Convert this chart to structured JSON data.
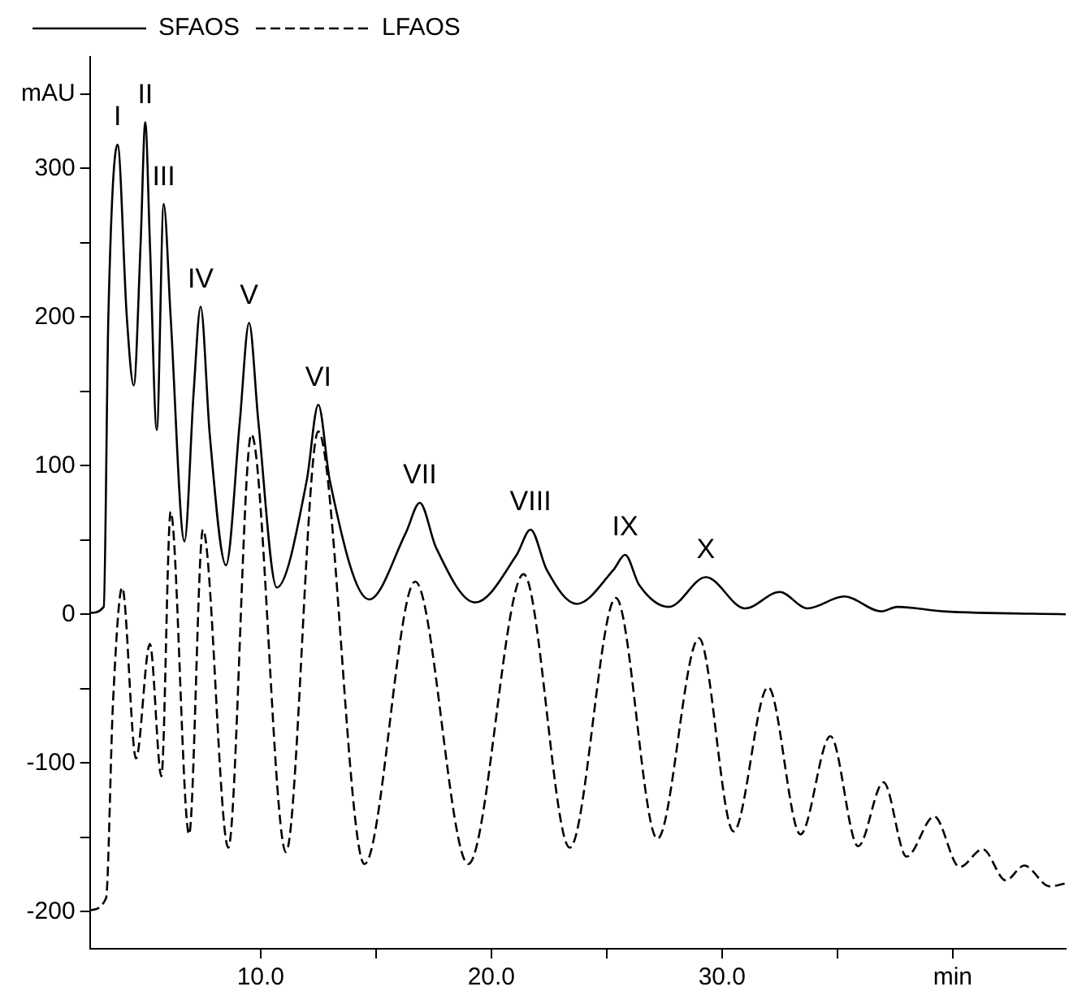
{
  "chart_data": {
    "type": "line",
    "xlim": [
      2.6,
      44.9
    ],
    "ylim": [
      -225,
      375
    ],
    "xticks": [
      {
        "value": 10,
        "label": "10.0"
      },
      {
        "value": 15,
        "label": null
      },
      {
        "value": 20,
        "label": "20.0"
      },
      {
        "value": 25,
        "label": null
      },
      {
        "value": 30,
        "label": "30.0"
      },
      {
        "value": 35,
        "label": null
      },
      {
        "value": 40,
        "label": "min"
      }
    ],
    "yticks": [
      -200,
      {
        "value": -150,
        "label": null
      },
      -100,
      {
        "value": -50,
        "label": null
      },
      0,
      {
        "value": 50,
        "label": null
      },
      100,
      {
        "value": 150,
        "label": null
      },
      200,
      {
        "value": 250,
        "label": null
      },
      300,
      {
        "value": 350,
        "label": "mAU"
      }
    ],
    "grid": false,
    "legend": "top left",
    "marker": "none",
    "series": [
      {
        "name": "SFAOS",
        "color": "#000000",
        "line_style": "solid",
        "x": [
          2.6,
          3.2,
          3.4,
          3.8,
          4.2,
          4.5,
          4.8,
          5.0,
          5.2,
          5.5,
          5.8,
          6.1,
          6.7,
          7.1,
          7.4,
          7.8,
          8.5,
          9.1,
          9.5,
          9.9,
          10.7,
          12.0,
          12.5,
          13.0,
          14.7,
          16.3,
          16.9,
          17.6,
          19.3,
          21.1,
          21.7,
          22.4,
          23.7,
          25.3,
          25.8,
          26.4,
          27.7,
          29.3,
          31.0,
          32.5,
          33.7,
          35.3,
          36.9,
          37.6,
          39.6,
          44.9
        ],
        "values": [
          1,
          5,
          200,
          316,
          200,
          154,
          250,
          331,
          250,
          124,
          276,
          200,
          49,
          150,
          207,
          120,
          33,
          130,
          196,
          130,
          18,
          90,
          141,
          90,
          10,
          55,
          75,
          45,
          8,
          40,
          57,
          30,
          7,
          30,
          40,
          20,
          5,
          25,
          4,
          15,
          4,
          12,
          2,
          5,
          2,
          0
        ]
      },
      {
        "name": "LFAOS",
        "color": "#000000",
        "line_style": "dashed",
        "x": [
          2.6,
          3.3,
          3.6,
          4.0,
          4.6,
          5.2,
          5.7,
          6.1,
          6.9,
          7.5,
          8.6,
          9.6,
          11.1,
          12.5,
          14.5,
          16.7,
          19.0,
          21.4,
          23.4,
          25.4,
          27.2,
          29.0,
          30.5,
          32.0,
          33.4,
          34.7,
          35.9,
          37.0,
          38.0,
          39.2,
          40.3,
          41.3,
          42.3,
          43.1,
          44.2,
          44.9
        ],
        "values": [
          -199,
          -191,
          -60,
          18,
          -97,
          -20,
          -109,
          69,
          -148,
          57,
          -157,
          121,
          -160,
          123,
          -168,
          22,
          -168,
          27,
          -157,
          11,
          -151,
          -16,
          -146,
          -49,
          -148,
          -82,
          -156,
          -113,
          -163,
          -136,
          -170,
          -158,
          -179,
          -169,
          -183,
          -181
        ]
      }
    ],
    "annotations": [
      {
        "text": "I",
        "x": 3.8,
        "y": 316
      },
      {
        "text": "II",
        "x": 5.0,
        "y": 331
      },
      {
        "text": "III",
        "x": 5.8,
        "y": 276
      },
      {
        "text": "IV",
        "x": 7.4,
        "y": 207
      },
      {
        "text": "V",
        "x": 9.5,
        "y": 196
      },
      {
        "text": "VI",
        "x": 12.5,
        "y": 141
      },
      {
        "text": "VII",
        "x": 16.9,
        "y": 75
      },
      {
        "text": "VIII",
        "x": 21.7,
        "y": 57
      },
      {
        "text": "IX",
        "x": 25.8,
        "y": 40
      },
      {
        "text": "X",
        "x": 29.3,
        "y": 25
      }
    ]
  }
}
